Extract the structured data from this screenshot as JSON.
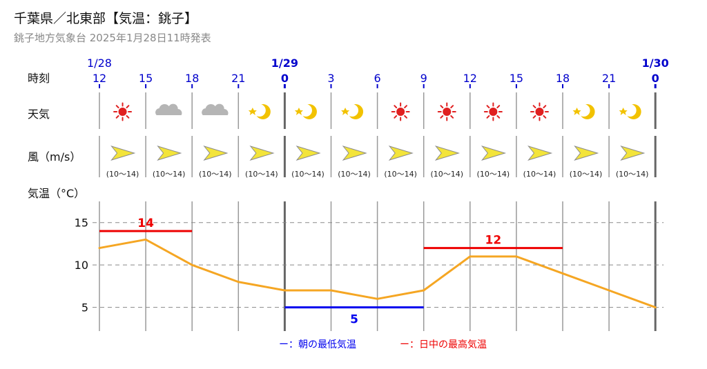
{
  "header": {
    "title": "千葉県／北東部【気温：銚子】",
    "subtitle": "銚子地方気象台 2025年1月28日11時発表"
  },
  "row_labels": {
    "time": "時刻",
    "weather": "天気",
    "wind": "風（m/s）",
    "temp": "気温（°C）"
  },
  "date_labels": [
    {
      "col": 0,
      "text": "1/28",
      "bold": false
    },
    {
      "col": 4,
      "text": "1/29",
      "bold": true
    },
    {
      "col": 12,
      "text": "1/30",
      "bold": true
    }
  ],
  "hours": [
    "12",
    "15",
    "18",
    "21",
    "0",
    "3",
    "6",
    "9",
    "12",
    "15",
    "18",
    "21",
    "0"
  ],
  "bold_hours": [
    4,
    12
  ],
  "weather": [
    "sun-icon",
    "cloud-icon",
    "cloud-icon",
    "moon-icon",
    "moon-icon",
    "moon-icon",
    "sun-icon",
    "sun-icon",
    "sun-icon",
    "sun-icon",
    "moon-icon",
    "moon-icon"
  ],
  "wind": {
    "label": "(10〜14)",
    "count": 12
  },
  "legend": {
    "min_label": "ー：朝の最低気温",
    "max_label": "ー：日中の最高気温"
  },
  "colors": {
    "line": "#f5a623",
    "min": "#0000ee",
    "max": "#ee0000",
    "hour_text": "#0000cc",
    "sun": "#e02020",
    "moon": "#f2c200",
    "cloud": "#b5b5b5",
    "wind_arrow": "#f3e43a"
  },
  "chart_data": {
    "type": "line",
    "ylabel": "気温（°C）",
    "yticks": [
      5,
      10,
      15
    ],
    "ylim": [
      2.2,
      17.5
    ],
    "x": [
      "1/28 12",
      "1/28 15",
      "1/28 18",
      "1/28 21",
      "1/29 0",
      "1/29 3",
      "1/29 6",
      "1/29 9",
      "1/29 12",
      "1/29 15",
      "1/29 18",
      "1/29 21",
      "1/30 0"
    ],
    "series": [
      {
        "values": [
          12,
          13,
          10,
          8,
          7,
          7,
          6,
          7,
          11,
          11,
          9,
          7,
          5
        ]
      }
    ],
    "max_temps": [
      {
        "from": 0,
        "to": 2,
        "value": 14
      },
      {
        "from": 7,
        "to": 10,
        "value": 12
      }
    ],
    "min_temps": [
      {
        "from": 4,
        "to": 7,
        "value": 5
      }
    ]
  }
}
